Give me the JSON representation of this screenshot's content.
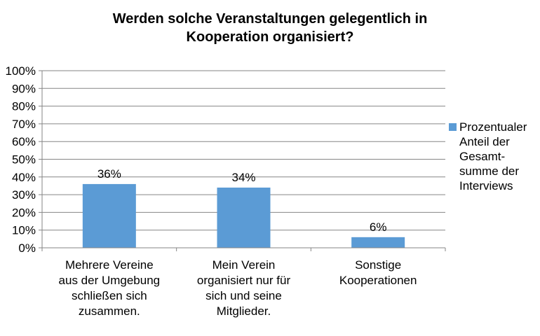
{
  "chart_data": {
    "type": "bar",
    "title_lines": [
      "Werden solche Veranstaltungen gelegentlich in",
      "Kooperation organisiert?"
    ],
    "categories": [
      "Mehrere Vereine\naus der Umgebung\nschließen sich\nzusammen.",
      "Mein Verein\norganisiert nur für\nsich und seine\nMitglieder.",
      "Sonstige\nKooperationen"
    ],
    "series": [
      {
        "name": "Prozentualer\nAnteil der\nGesamt-\nsumme der\nInterviews",
        "values": [
          36,
          34,
          6
        ]
      }
    ],
    "data_labels": [
      "36%",
      "34%",
      "6%"
    ],
    "ylim": [
      0,
      100
    ],
    "yticks": [
      "0%",
      "10%",
      "20%",
      "30%",
      "40%",
      "50%",
      "60%",
      "70%",
      "80%",
      "90%",
      "100%"
    ],
    "grid": true,
    "legend_position": "right",
    "colors": {
      "bar": "#5b9bd5",
      "grid": "#868686",
      "axis": "#868686"
    }
  }
}
